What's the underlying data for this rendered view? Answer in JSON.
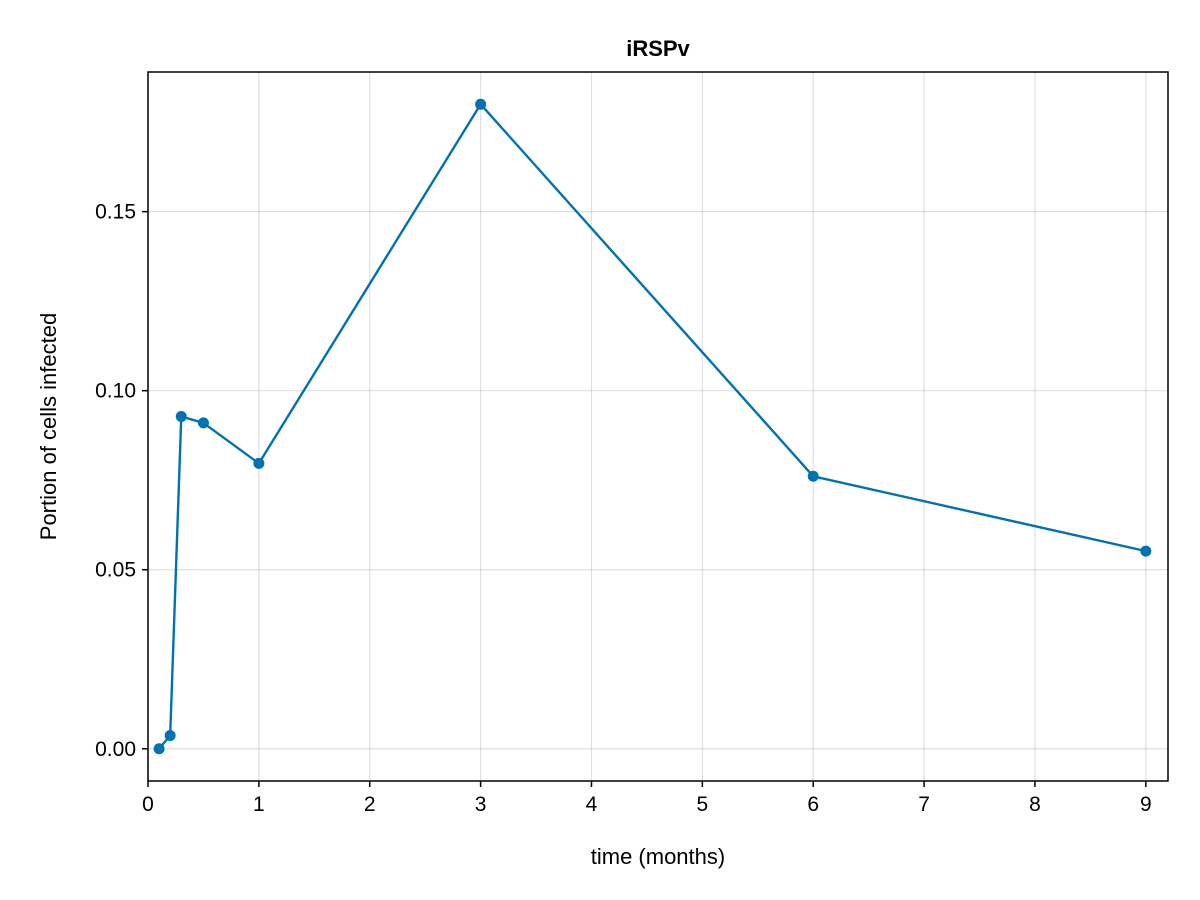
{
  "chart_data": {
    "type": "line",
    "title": "iRSPv",
    "xlabel": "time (months)",
    "ylabel": "Portion of cells infected",
    "xlim": [
      0,
      9.2
    ],
    "ylim": [
      -0.009,
      0.189
    ],
    "xticks": [
      0,
      1,
      2,
      3,
      4,
      5,
      6,
      7,
      8,
      9
    ],
    "xtick_labels": [
      "0",
      "1",
      "2",
      "3",
      "4",
      "5",
      "6",
      "7",
      "8",
      "9"
    ],
    "yticks": [
      0.0,
      0.05,
      0.1,
      0.15
    ],
    "ytick_labels": [
      "0.00",
      "0.05",
      "0.10",
      "0.15"
    ],
    "grid": true,
    "legend": "none",
    "series": [
      {
        "color": "#0072b2",
        "markers": true,
        "x": [
          0.1,
          0.2,
          0.3,
          0.5,
          1,
          3,
          6,
          9
        ],
        "y": [
          0.0,
          0.0037,
          0.0928,
          0.091,
          0.0797,
          0.18,
          0.0761,
          0.0552
        ]
      }
    ]
  }
}
